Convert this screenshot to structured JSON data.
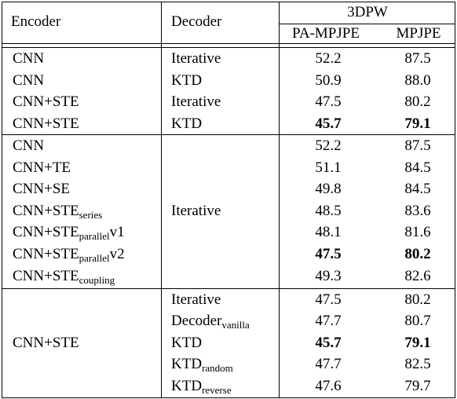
{
  "header": {
    "encoder": "Encoder",
    "decoder": "Decoder",
    "dataset": "3DPW",
    "metric1": "PA-MPJPE",
    "metric2": "MPJPE"
  },
  "groups": [
    {
      "rows": [
        {
          "encoder": "CNN",
          "encoder_sub": "",
          "encoder_suffix": "",
          "decoder": "Iterative",
          "decoder_sub": "",
          "pa": "52.2",
          "mpjpe": "87.5",
          "bold": false
        },
        {
          "encoder": "CNN",
          "encoder_sub": "",
          "encoder_suffix": "",
          "decoder": "KTD",
          "decoder_sub": "",
          "pa": "50.9",
          "mpjpe": "88.0",
          "bold": false
        },
        {
          "encoder": "CNN+STE",
          "encoder_sub": "",
          "encoder_suffix": "",
          "decoder": "Iterative",
          "decoder_sub": "",
          "pa": "47.5",
          "mpjpe": "80.2",
          "bold": false
        },
        {
          "encoder": "CNN+STE",
          "encoder_sub": "",
          "encoder_suffix": "",
          "decoder": "KTD",
          "decoder_sub": "",
          "pa": "45.7",
          "mpjpe": "79.1",
          "bold": true
        }
      ]
    },
    {
      "shared_decoder": "Iterative",
      "rows": [
        {
          "encoder": "CNN",
          "encoder_sub": "",
          "encoder_suffix": "",
          "pa": "52.2",
          "mpjpe": "87.5",
          "bold": false
        },
        {
          "encoder": "CNN+TE",
          "encoder_sub": "",
          "encoder_suffix": "",
          "pa": "51.1",
          "mpjpe": "84.5",
          "bold": false
        },
        {
          "encoder": "CNN+SE",
          "encoder_sub": "",
          "encoder_suffix": "",
          "pa": "49.8",
          "mpjpe": "84.5",
          "bold": false
        },
        {
          "encoder": "CNN+STE",
          "encoder_sub": "series",
          "encoder_suffix": "",
          "pa": "48.5",
          "mpjpe": "83.6",
          "bold": false
        },
        {
          "encoder": "CNN+STE",
          "encoder_sub": "parallel",
          "encoder_suffix": "v1",
          "pa": "48.1",
          "mpjpe": "81.6",
          "bold": false
        },
        {
          "encoder": "CNN+STE",
          "encoder_sub": "parallel",
          "encoder_suffix": "v2",
          "pa": "47.5",
          "mpjpe": "80.2",
          "bold": true
        },
        {
          "encoder": "CNN+STE",
          "encoder_sub": "coupling",
          "encoder_suffix": "",
          "pa": "49.3",
          "mpjpe": "82.6",
          "bold": false
        }
      ]
    },
    {
      "shared_encoder": "CNN+STE",
      "rows": [
        {
          "decoder": "Iterative",
          "decoder_sub": "",
          "pa": "47.5",
          "mpjpe": "80.2",
          "bold": false
        },
        {
          "decoder": "Decoder",
          "decoder_sub": "vanilla",
          "pa": "47.7",
          "mpjpe": "80.7",
          "bold": false
        },
        {
          "decoder": "KTD",
          "decoder_sub": "",
          "pa": "45.7",
          "mpjpe": "79.1",
          "bold": true
        },
        {
          "decoder": "KTD",
          "decoder_sub": "random",
          "pa": "47.7",
          "mpjpe": "82.5",
          "bold": false
        },
        {
          "decoder": "KTD",
          "decoder_sub": "reverse",
          "pa": "47.6",
          "mpjpe": "79.7",
          "bold": false
        }
      ]
    }
  ]
}
